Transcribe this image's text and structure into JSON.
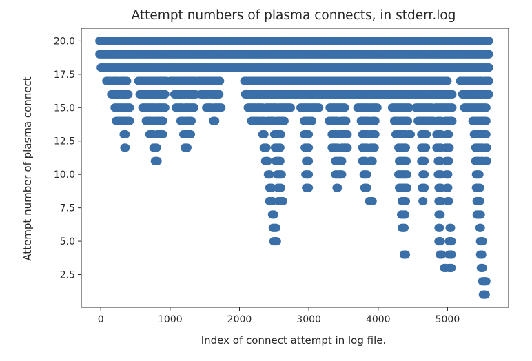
{
  "chart_data": {
    "type": "scatter",
    "title": "Attempt numbers of plasma connects, in stderr.log",
    "xlabel": "Index of connect attempt in log file.",
    "ylabel": "Attempt number of plasma connect",
    "xlim": [
      -280,
      5880
    ],
    "ylim": [
      0.05,
      20.95
    ],
    "x_ticks": [
      0,
      1000,
      2000,
      3000,
      4000,
      5000
    ],
    "x_tick_labels": [
      "0",
      "1000",
      "2000",
      "3000",
      "4000",
      "5000"
    ],
    "y_ticks": [
      2.5,
      5.0,
      7.5,
      10.0,
      12.5,
      15.0,
      17.5,
      20.0
    ],
    "y_tick_labels": [
      "2.5",
      "5.0",
      "7.5",
      "10.0",
      "12.5",
      "15.0",
      "17.5",
      "20.0"
    ],
    "grid": false,
    "marker_color": "#3a6fa8",
    "point_runs": [
      {
        "y": 20,
        "x_ranges": [
          [
            -20,
            5600
          ]
        ]
      },
      {
        "y": 19,
        "x_ranges": [
          [
            -20,
            5600
          ]
        ]
      },
      {
        "y": 18,
        "x_ranges": [
          [
            0,
            5600
          ]
        ]
      },
      {
        "y": 17,
        "x_ranges": [
          [
            80,
            240
          ],
          [
            280,
            380
          ],
          [
            540,
            720
          ],
          [
            740,
            950
          ],
          [
            1000,
            1170
          ],
          [
            1200,
            1360
          ],
          [
            1400,
            1580
          ],
          [
            1600,
            1720
          ],
          [
            2070,
            5000
          ],
          [
            5180,
            5360
          ],
          [
            5380,
            5500
          ],
          [
            5540,
            5600
          ]
        ]
      },
      {
        "y": 16,
        "x_ranges": [
          [
            150,
            300
          ],
          [
            310,
            400
          ],
          [
            560,
            750
          ],
          [
            760,
            930
          ],
          [
            1060,
            1220
          ],
          [
            1250,
            1370
          ],
          [
            1440,
            1560
          ],
          [
            1590,
            1710
          ],
          [
            2080,
            5070
          ],
          [
            5210,
            5600
          ]
        ]
      },
      {
        "y": 15,
        "x_ranges": [
          [
            200,
            340
          ],
          [
            360,
            420
          ],
          [
            600,
            780
          ],
          [
            800,
            930
          ],
          [
            1080,
            1180
          ],
          [
            1210,
            1350
          ],
          [
            1520,
            1600
          ],
          [
            1630,
            1740
          ],
          [
            2120,
            2230
          ],
          [
            2250,
            2340
          ],
          [
            2380,
            2540
          ],
          [
            2570,
            2740
          ],
          [
            2880,
            3020
          ],
          [
            3040,
            3150
          ],
          [
            3300,
            3520
          ],
          [
            3700,
            3880
          ],
          [
            3900,
            3990
          ],
          [
            4200,
            4450
          ],
          [
            4540,
            4780
          ],
          [
            4820,
            5070
          ],
          [
            5240,
            5560
          ]
        ]
      },
      {
        "y": 14,
        "x_ranges": [
          [
            220,
            360
          ],
          [
            370,
            420
          ],
          [
            650,
            750
          ],
          [
            780,
            900
          ],
          [
            1150,
            1200
          ],
          [
            1230,
            1310
          ],
          [
            1620,
            1650
          ],
          [
            2170,
            2250
          ],
          [
            2260,
            2280
          ],
          [
            2310,
            2360
          ],
          [
            2400,
            2500
          ],
          [
            2540,
            2650
          ],
          [
            2930,
            3000
          ],
          [
            3020,
            3050
          ],
          [
            3290,
            3420
          ],
          [
            3460,
            3540
          ],
          [
            3750,
            3870
          ],
          [
            3900,
            3960
          ],
          [
            4230,
            4290
          ],
          [
            4310,
            4430
          ],
          [
            4570,
            4690
          ],
          [
            4700,
            4800
          ],
          [
            4850,
            4910
          ],
          [
            4960,
            5070
          ],
          [
            5360,
            5420
          ],
          [
            5440,
            5560
          ]
        ]
      },
      {
        "y": 13,
        "x_ranges": [
          [
            330,
            360
          ],
          [
            700,
            760
          ],
          [
            810,
            900
          ],
          [
            1190,
            1300
          ],
          [
            2330,
            2360
          ],
          [
            2500,
            2600
          ],
          [
            2930,
            3000
          ],
          [
            3330,
            3400
          ],
          [
            3440,
            3560
          ],
          [
            3770,
            3850
          ],
          [
            3890,
            3960
          ],
          [
            4250,
            4400
          ],
          [
            4440,
            4470
          ],
          [
            4620,
            4700
          ],
          [
            4840,
            4910
          ],
          [
            4990,
            5020
          ],
          [
            5380,
            5420
          ],
          [
            5430,
            5560
          ]
        ]
      },
      {
        "y": 12,
        "x_ranges": [
          [
            340,
            360
          ],
          [
            760,
            810
          ],
          [
            1210,
            1250
          ],
          [
            2350,
            2390
          ],
          [
            2510,
            2590
          ],
          [
            2940,
            3000
          ],
          [
            3330,
            3420
          ],
          [
            3470,
            3560
          ],
          [
            3770,
            3840
          ],
          [
            3890,
            3950
          ],
          [
            4290,
            4400
          ],
          [
            4620,
            4690
          ],
          [
            4840,
            4910
          ],
          [
            4970,
            5030
          ],
          [
            5400,
            5510
          ],
          [
            5550,
            5570
          ]
        ]
      },
      {
        "y": 11,
        "x_ranges": [
          [
            780,
            820
          ],
          [
            2370,
            2410
          ],
          [
            2520,
            2590
          ],
          [
            2960,
            3000
          ],
          [
            3380,
            3480
          ],
          [
            3770,
            3820
          ],
          [
            3880,
            3920
          ],
          [
            4300,
            4410
          ],
          [
            4620,
            4670
          ],
          [
            4860,
            4900
          ],
          [
            4980,
            5020
          ],
          [
            5400,
            5460
          ],
          [
            5480,
            5510
          ],
          [
            5550,
            5570
          ]
        ]
      },
      {
        "y": 10,
        "x_ranges": [
          [
            2410,
            2440
          ],
          [
            2540,
            2610
          ],
          [
            2950,
            3000
          ],
          [
            3380,
            3410
          ],
          [
            3430,
            3480
          ],
          [
            3790,
            3840
          ],
          [
            4290,
            4420
          ],
          [
            4640,
            4670
          ],
          [
            4860,
            4910
          ],
          [
            4980,
            5010
          ],
          [
            5410,
            5460
          ]
        ]
      },
      {
        "y": 9,
        "x_ranges": [
          [
            2430,
            2470
          ],
          [
            2550,
            2600
          ],
          [
            2960,
            3000
          ],
          [
            3400,
            3420
          ],
          [
            3800,
            3840
          ],
          [
            4300,
            4420
          ],
          [
            4630,
            4670
          ],
          [
            4870,
            4910
          ],
          [
            4990,
            5010
          ],
          [
            5410,
            5470
          ]
        ]
      },
      {
        "y": 8,
        "x_ranges": [
          [
            2430,
            2480
          ],
          [
            2560,
            2630
          ],
          [
            3870,
            3920
          ],
          [
            4340,
            4400
          ],
          [
            4640,
            4650
          ],
          [
            4870,
            4910
          ],
          [
            5000,
            5020
          ],
          [
            5420,
            5470
          ]
        ]
      },
      {
        "y": 7,
        "x_ranges": [
          [
            2470,
            2500
          ],
          [
            4330,
            4390
          ],
          [
            4870,
            4900
          ],
          [
            5420,
            5450
          ],
          [
            5460,
            5480
          ]
        ]
      },
      {
        "y": 6,
        "x_ranges": [
          [
            2480,
            2530
          ],
          [
            4340,
            4380
          ],
          [
            4870,
            4890
          ],
          [
            5030,
            5050
          ],
          [
            5460,
            5480
          ]
        ]
      },
      {
        "y": 5,
        "x_ranges": [
          [
            2490,
            2540
          ],
          [
            4870,
            4900
          ],
          [
            5020,
            5060
          ],
          [
            5470,
            5510
          ]
        ]
      },
      {
        "y": 4,
        "x_ranges": [
          [
            4370,
            4400
          ],
          [
            4890,
            4920
          ],
          [
            5020,
            5060
          ],
          [
            5470,
            5500
          ]
        ]
      },
      {
        "y": 3,
        "x_ranges": [
          [
            4950,
            4980
          ],
          [
            5020,
            5060
          ],
          [
            5480,
            5510
          ]
        ]
      },
      {
        "y": 2,
        "x_ranges": [
          [
            5500,
            5560
          ]
        ]
      },
      {
        "y": 1,
        "x_ranges": [
          [
            5510,
            5550
          ]
        ]
      }
    ]
  }
}
